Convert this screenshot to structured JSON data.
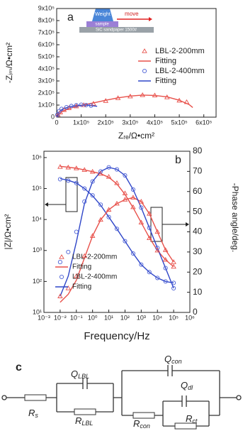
{
  "chart_data": [
    {
      "type": "scatter",
      "annotations": [
        "a",
        "Weight",
        "move",
        "sample",
        "SiC sandpaper 1500#"
      ],
      "xlabel": "Zᵣₑ/Ω•cm²",
      "ylabel": "-Zᵢₘ/Ω•cm²",
      "xlim": [
        0,
        650000
      ],
      "ylim": [
        0,
        900000
      ],
      "xticks": [
        0,
        {
          "value": 100000,
          "label": "1x10⁵"
        },
        {
          "value": 200000,
          "label": "2x10⁵"
        },
        {
          "value": 300000,
          "label": "3x10⁵"
        },
        {
          "value": 400000,
          "label": "4x10⁵"
        },
        {
          "value": 500000,
          "label": "5x10⁵"
        },
        {
          "value": 600000,
          "label": "6x10⁵"
        }
      ],
      "yticks": [
        0,
        {
          "value": 100000,
          "label": "1x10⁵"
        },
        {
          "value": 200000,
          "label": "2x10⁵"
        },
        {
          "value": 300000,
          "label": "3x10⁵"
        },
        {
          "value": 400000,
          "label": "4x10⁵"
        },
        {
          "value": 500000,
          "label": "5x10⁵"
        },
        {
          "value": 600000,
          "label": "6x10⁵"
        },
        {
          "value": 700000,
          "label": "7x10⁵"
        },
        {
          "value": 800000,
          "label": "8x10⁵"
        },
        {
          "value": 900000,
          "label": "9x10⁵"
        }
      ],
      "legend": "right",
      "series": [
        {
          "name": "LBL-2-200mm",
          "color": "#e8504a",
          "marker": "triangle",
          "x": [
            5000,
            15000,
            30000,
            50000,
            80000,
            110000,
            150000,
            200000,
            250000,
            300000,
            350000,
            400000,
            450000,
            500000,
            530000
          ],
          "values": [
            20000,
            40000,
            60000,
            75000,
            90000,
            100000,
            112000,
            135000,
            158000,
            172000,
            183000,
            180000,
            165000,
            138000,
            125000
          ]
        },
        {
          "name": "Fitting",
          "color": "#e8504a",
          "marker": "line",
          "x": [
            0,
            20000,
            50000,
            100000,
            150000,
            200000,
            250000,
            300000,
            350000,
            400000,
            450000,
            500000,
            540000,
            555000
          ],
          "values": [
            0,
            45000,
            72000,
            98000,
            118000,
            140000,
            160000,
            175000,
            183000,
            180000,
            168000,
            140000,
            105000,
            80000
          ]
        },
        {
          "name": "LBL-2-400mm",
          "color": "#4a5fd6",
          "marker": "circle",
          "x": [
            3000,
            10000,
            20000,
            40000,
            60000,
            80000,
            100000,
            120000,
            140000
          ],
          "values": [
            20000,
            50000,
            68000,
            82000,
            92000,
            98000,
            103000,
            100000,
            96000
          ]
        },
        {
          "name": "Fitting",
          "color": "#2f46c8",
          "marker": "line",
          "x": [
            0,
            10000,
            25000,
            50000,
            75000,
            100000,
            125000,
            150000,
            165000
          ],
          "values": [
            0,
            45000,
            68000,
            85000,
            95000,
            99000,
            99000,
            94000,
            90000
          ]
        }
      ]
    },
    {
      "type": "scatter",
      "annotations": [
        "b"
      ],
      "xlabel": "Frequency/Hz",
      "ylabel": "|Z|/Ω•cm²",
      "y2label": "-Phase angle/deg.",
      "xscale": "log",
      "yscale": "log",
      "xlim": [
        0.001,
        1000000
      ],
      "ylim": [
        10,
        1600000
      ],
      "y2lim": [
        0,
        80
      ],
      "xticks": [
        {
          "value": 0.001,
          "label": "10⁻³"
        },
        {
          "value": 0.01,
          "label": "10⁻²"
        },
        {
          "value": 0.1,
          "label": "10⁻¹"
        },
        {
          "value": 1,
          "label": "10⁰"
        },
        {
          "value": 10,
          "label": "10¹"
        },
        {
          "value": 100,
          "label": "10²"
        },
        {
          "value": 1000,
          "label": "10³"
        },
        {
          "value": 10000,
          "label": "10⁴"
        },
        {
          "value": 100000,
          "label": "10⁵"
        },
        {
          "value": 1000000,
          "label": "10⁶"
        }
      ],
      "yticks": [
        {
          "value": 10,
          "label": "10¹"
        },
        {
          "value": 100,
          "label": "10²"
        },
        {
          "value": 1000,
          "label": "10³"
        },
        {
          "value": 10000,
          "label": "10⁴"
        },
        {
          "value": 100000,
          "label": "10⁵"
        },
        {
          "value": 1000000,
          "label": "10⁶"
        }
      ],
      "y2ticks": [
        0,
        10,
        20,
        30,
        40,
        50,
        60,
        70,
        80
      ],
      "legend": "lower left",
      "series": [
        {
          "name": "LBL-2-200mm",
          "color": "#e8504a",
          "marker": "triangle",
          "x": [
            0.01,
            0.0316,
            0.1,
            0.316,
            1,
            3.16,
            10,
            31.6,
            100,
            316,
            1000,
            3160,
            10000,
            31600,
            100000
          ],
          "values": [
            500000,
            480000,
            450000,
            400000,
            350000,
            300000,
            240000,
            150000,
            70000,
            25000,
            8000,
            2500,
            1000,
            500,
            300
          ]
        },
        {
          "name": "Fitting",
          "color": "#e8504a",
          "marker": "line",
          "x": [
            0.01,
            0.0316,
            0.1,
            0.316,
            1,
            3.16,
            10,
            31.6,
            100,
            316,
            1000,
            3160,
            10000,
            31600,
            100000
          ],
          "values": [
            520000,
            490000,
            450000,
            400000,
            350000,
            300000,
            230000,
            140000,
            65000,
            24000,
            8000,
            2600,
            1000,
            500,
            300
          ]
        },
        {
          "name": "LBL-2-400mm",
          "color": "#4a5fd6",
          "marker": "circle",
          "x": [
            0.01,
            0.0316,
            0.1,
            0.316,
            1,
            3.16,
            10,
            31.6,
            100,
            316,
            1000,
            3160,
            10000,
            31600,
            100000
          ],
          "values": [
            200000,
            180000,
            150000,
            100000,
            60000,
            30000,
            12000,
            5000,
            2000,
            800,
            350,
            200,
            130,
            100,
            90
          ]
        },
        {
          "name": "Fitting",
          "color": "#2f46c8",
          "marker": "line",
          "x": [
            0.01,
            0.0316,
            0.1,
            0.316,
            1,
            3.16,
            10,
            31.6,
            100,
            316,
            1000,
            3160,
            10000,
            31600,
            100000
          ],
          "values": [
            210000,
            185000,
            150000,
            100000,
            58000,
            29000,
            12000,
            5000,
            2000,
            800,
            350,
            200,
            130,
            100,
            90
          ]
        },
        {
          "color": "#e8504a",
          "marker": "triangle",
          "axis": "y2",
          "x": [
            0.01,
            0.0316,
            0.1,
            0.316,
            1,
            3.16,
            10,
            31.6,
            100,
            316,
            1000,
            3160,
            10000,
            31600,
            100000
          ],
          "values": [
            8,
            12,
            18,
            28,
            38,
            46,
            51,
            54,
            56,
            57,
            55,
            49,
            40,
            31,
            25
          ]
        },
        {
          "color": "#e8504a",
          "marker": "line",
          "axis": "y2",
          "x": [
            0.01,
            0.0316,
            0.1,
            0.316,
            1,
            3.16,
            10,
            31.6,
            100,
            316,
            1000,
            3160,
            10000,
            31600,
            100000
          ],
          "values": [
            5,
            9,
            16,
            27,
            38,
            46,
            51,
            54,
            56,
            57,
            55,
            49,
            40,
            31,
            25
          ]
        },
        {
          "color": "#4a5fd6",
          "marker": "circle",
          "axis": "y2",
          "x": [
            0.01,
            0.0316,
            0.1,
            0.316,
            1,
            3.16,
            10,
            31.6,
            100,
            316,
            1000,
            3160,
            10000,
            31600,
            100000
          ],
          "values": [
            25,
            30,
            40,
            55,
            65,
            70,
            72,
            71,
            68,
            61,
            52,
            42,
            32,
            22,
            12
          ]
        },
        {
          "color": "#2f46c8",
          "marker": "line",
          "axis": "y2",
          "x": [
            0.01,
            0.0316,
            0.1,
            0.316,
            1,
            3.16,
            10,
            31.6,
            100,
            316,
            1000,
            3160,
            10000,
            31600,
            100000
          ],
          "values": [
            8,
            18,
            35,
            54,
            65,
            70,
            72,
            71,
            68,
            61,
            52,
            42,
            32,
            22,
            12
          ]
        }
      ]
    }
  ],
  "diagram": {
    "label": "c",
    "elements": [
      {
        "symbol": "R",
        "sub": "s"
      },
      {
        "symbol": "Q",
        "sub": "LBL"
      },
      {
        "symbol": "R",
        "sub": "LBL"
      },
      {
        "symbol": "Q",
        "sub": "con"
      },
      {
        "symbol": "R",
        "sub": "con"
      },
      {
        "symbol": "Q",
        "sub": "dl"
      },
      {
        "symbol": "R",
        "sub": "ct"
      }
    ]
  }
}
